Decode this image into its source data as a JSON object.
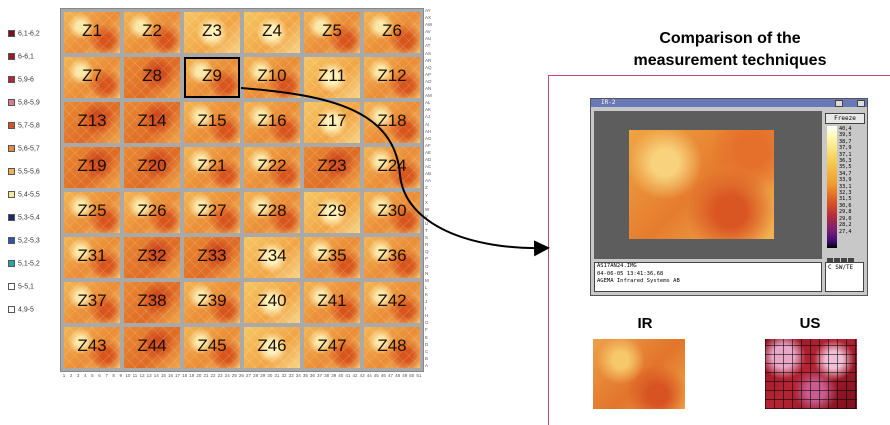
{
  "legend": [
    {
      "label": "6,1-6,2",
      "color": "#7a1020"
    },
    {
      "label": "6-6,1",
      "color": "#9a1a22"
    },
    {
      "label": "5,9-6",
      "color": "#b42633"
    },
    {
      "label": "5,8-5,9",
      "color": "#e07a8f"
    },
    {
      "label": "5,7-5,8",
      "color": "#d4552a"
    },
    {
      "label": "5,6-5,7",
      "color": "#e7873a"
    },
    {
      "label": "5,5-5,6",
      "color": "#f0b24c"
    },
    {
      "label": "5,4-5,5",
      "color": "#f9e4a0"
    },
    {
      "label": "5,3-5,4",
      "color": "#1b2a6e"
    },
    {
      "label": "5,2-5,3",
      "color": "#2d55b0"
    },
    {
      "label": "5,1-5,2",
      "color": "#2aa7a7"
    },
    {
      "label": "5-5,1",
      "color": "#ffffff"
    },
    {
      "label": "4,9-5",
      "color": "#ffffff"
    }
  ],
  "zones": [
    "Z1",
    "Z2",
    "Z3",
    "Z4",
    "Z5",
    "Z6",
    "Z7",
    "Z8",
    "Z9",
    "Z10",
    "Z11",
    "Z12",
    "Z13",
    "Z14",
    "Z15",
    "Z16",
    "Z17",
    "Z18",
    "Z19",
    "Z20",
    "Z21",
    "Z22",
    "Z23",
    "Z24",
    "Z25",
    "Z26",
    "Z27",
    "Z28",
    "Z29",
    "Z30",
    "Z31",
    "Z32",
    "Z33",
    "Z34",
    "Z35",
    "Z36",
    "Z37",
    "Z38",
    "Z39",
    "Z40",
    "Z41",
    "Z42",
    "Z43",
    "Z44",
    "Z45",
    "Z46",
    "Z47",
    "Z48"
  ],
  "selected_zone": "Z9",
  "row_letters": [
    "AY",
    "AX",
    "AW",
    "AV",
    "AU",
    "AT",
    "AS",
    "AR",
    "AQ",
    "AP",
    "AO",
    "AN",
    "AM",
    "AL",
    "AK",
    "AJ",
    "AI",
    "AH",
    "AG",
    "AF",
    "AE",
    "AD",
    "AC",
    "AB",
    "AA",
    "Z",
    "Y",
    "X",
    "W",
    "V",
    "U",
    "T",
    "S",
    "R",
    "Q",
    "P",
    "O",
    "N",
    "M",
    "L",
    "K",
    "J",
    "I",
    "H",
    "G",
    "F",
    "E",
    "D",
    "C",
    "B",
    "A"
  ],
  "column_numbers": [
    "1",
    "2",
    "3",
    "4",
    "5",
    "6",
    "7",
    "8",
    "9",
    "10",
    "11",
    "12",
    "13",
    "14",
    "15",
    "16",
    "17",
    "18",
    "19",
    "20",
    "21",
    "22",
    "23",
    "24",
    "25",
    "26",
    "27",
    "28",
    "29",
    "30",
    "31",
    "32",
    "33",
    "34",
    "35",
    "36",
    "37",
    "38",
    "39",
    "40",
    "41",
    "42",
    "43",
    "44",
    "45",
    "46",
    "47",
    "48",
    "49",
    "50",
    "51"
  ],
  "comparison": {
    "title_line1": "Comparison of the",
    "title_line2": "measurement techniques",
    "ir_label": "IR",
    "us_label": "US"
  },
  "thermo_window": {
    "title": "IR-2",
    "freeze_label": "Freeze",
    "scale_values": [
      "40,4",
      "39,5",
      "38,7",
      "37,9",
      "37,1",
      "36,3",
      "35,5",
      "34,7",
      "33,9",
      "33,1",
      "32,3",
      "31,5",
      "30,6",
      "29,8",
      "29,0",
      "28,2",
      "27,4"
    ],
    "info_lines": [
      "AS17AN24.IMG",
      "04-06-05 13:41:36,68",
      "AGEMA Infrared Systems AB"
    ],
    "unit_text": "C    SW/TE",
    "colors": {
      "title_bar": "#6a78b8",
      "frame": "#c8c8c8"
    }
  }
}
